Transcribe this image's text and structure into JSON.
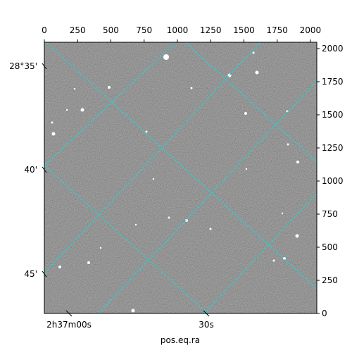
{
  "chart_data": {
    "type": "image",
    "xlabel": "pos.eq.ra",
    "xlim": [
      0,
      2048
    ],
    "ylim": [
      0,
      2048
    ],
    "xticks": [
      0,
      250,
      500,
      750,
      1000,
      1250,
      1500,
      1750,
      2000
    ],
    "yticks": [
      0,
      250,
      500,
      750,
      1000,
      1250,
      1500,
      1750,
      2000
    ],
    "dec_tick_labels": [
      "28°35'",
      "40'",
      "45'"
    ],
    "ra_tick_labels": [
      "2h37m00s",
      "30s"
    ],
    "grid_color": "#00e5e5"
  }
}
